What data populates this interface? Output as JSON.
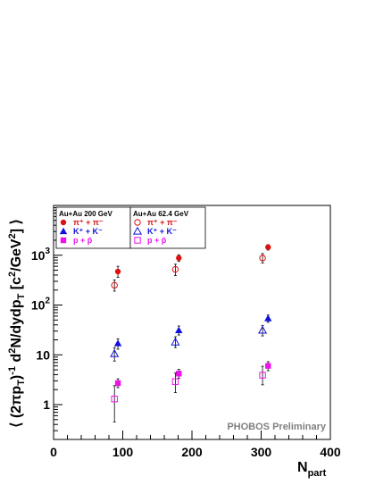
{
  "chart_data": {
    "type": "scatter",
    "xlabel": "N_part",
    "ylabel": "⟨ (2πp_T)^-1 d²N/dydp_T [c²/GeV²] ⟩",
    "xlim": [
      0,
      400
    ],
    "ylim": [
      0.2,
      10000
    ],
    "yscale": "log",
    "grid": false,
    "x_ticks": [
      "0",
      "100",
      "200",
      "300",
      "400"
    ],
    "y_ticks": [
      "1",
      "10",
      "10^2",
      "10^3"
    ],
    "legend": [
      {
        "header": "Au+Au 200 GeV",
        "entries": [
          "π⁺ + π⁻",
          "K⁺ + K⁻",
          "p + p̄"
        ]
      },
      {
        "header": "Au+Au 62.4 GeV",
        "entries": [
          "π⁺ + π⁻",
          "K⁺ + K⁻",
          "p + p̄"
        ]
      }
    ],
    "annotation": "PHOBOS Preliminary",
    "series": [
      {
        "energy": "200 GeV",
        "species": "pi",
        "marker": "filled-circle",
        "color": "#dd1111",
        "points": [
          {
            "x": 93,
            "y": 470,
            "lo": 360,
            "hi": 600
          },
          {
            "x": 181,
            "y": 880,
            "lo": 750,
            "hi": 1020
          },
          {
            "x": 310,
            "y": 1450,
            "lo": 1270,
            "hi": 1630
          }
        ]
      },
      {
        "energy": "62.4 GeV",
        "species": "pi",
        "marker": "open-circle",
        "color": "#dd1111",
        "points": [
          {
            "x": 88,
            "y": 250,
            "lo": 190,
            "hi": 320
          },
          {
            "x": 176,
            "y": 520,
            "lo": 390,
            "hi": 660
          },
          {
            "x": 302,
            "y": 880,
            "lo": 700,
            "hi": 1080
          }
        ]
      },
      {
        "energy": "200 GeV",
        "species": "K",
        "marker": "filled-triangle",
        "color": "#1111dd",
        "points": [
          {
            "x": 93,
            "y": 17,
            "lo": 13,
            "hi": 21
          },
          {
            "x": 181,
            "y": 31,
            "lo": 25,
            "hi": 38
          },
          {
            "x": 310,
            "y": 54,
            "lo": 45,
            "hi": 63
          }
        ]
      },
      {
        "energy": "62.4 GeV",
        "species": "K",
        "marker": "open-triangle",
        "color": "#1111dd",
        "points": [
          {
            "x": 88,
            "y": 10.5,
            "lo": 7.5,
            "hi": 14
          },
          {
            "x": 176,
            "y": 18,
            "lo": 14,
            "hi": 23
          },
          {
            "x": 302,
            "y": 31,
            "lo": 24,
            "hi": 39
          }
        ]
      },
      {
        "energy": "200 GeV",
        "species": "p",
        "marker": "filled-square",
        "color": "#ee11ee",
        "points": [
          {
            "x": 93,
            "y": 2.7,
            "lo": 2.2,
            "hi": 3.3
          },
          {
            "x": 181,
            "y": 4.2,
            "lo": 3.4,
            "hi": 5.1
          },
          {
            "x": 310,
            "y": 6.0,
            "lo": 4.8,
            "hi": 7.3
          }
        ]
      },
      {
        "energy": "62.4 GeV",
        "species": "p",
        "marker": "open-square",
        "color": "#ee11ee",
        "points": [
          {
            "x": 88,
            "y": 1.3,
            "lo": 0.45,
            "hi": 2.4
          },
          {
            "x": 176,
            "y": 2.9,
            "lo": 1.75,
            "hi": 4.3
          },
          {
            "x": 302,
            "y": 3.9,
            "lo": 2.5,
            "hi": 5.9
          }
        ]
      }
    ]
  }
}
